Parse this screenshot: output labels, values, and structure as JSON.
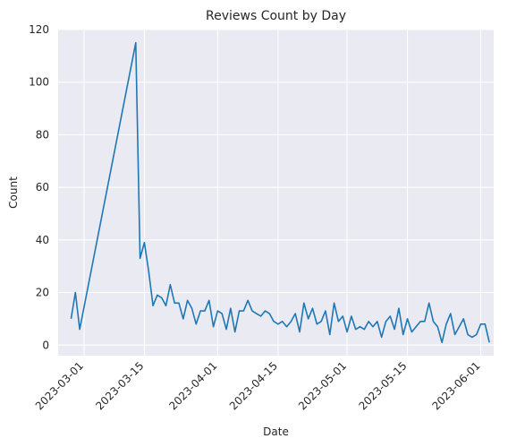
{
  "chart_data": {
    "type": "line",
    "title": "Reviews Count by Day",
    "xlabel": "Date",
    "ylabel": "Count",
    "x_axis_kind": "date",
    "xlim": [
      "2023-02-23",
      "2023-06-04"
    ],
    "ylim": [
      -4,
      120
    ],
    "yticks": [
      0,
      20,
      40,
      60,
      80,
      100,
      120
    ],
    "xticks": [
      "2023-03-01",
      "2023-03-15",
      "2023-04-01",
      "2023-04-15",
      "2023-05-01",
      "2023-05-15",
      "2023-06-01"
    ],
    "grid": true,
    "background": "#eaeaf2",
    "line_color": "#1f77b4",
    "series": [
      {
        "points": [
          [
            "2023-02-26",
            10
          ],
          [
            "2023-02-27",
            20
          ],
          [
            "2023-02-28",
            6
          ],
          [
            "2023-03-13",
            115
          ],
          [
            "2023-03-14",
            33
          ],
          [
            "2023-03-15",
            39
          ],
          [
            "2023-03-16",
            28
          ],
          [
            "2023-03-17",
            15
          ],
          [
            "2023-03-18",
            19
          ],
          [
            "2023-03-19",
            18
          ],
          [
            "2023-03-20",
            15
          ],
          [
            "2023-03-21",
            23
          ],
          [
            "2023-03-22",
            16
          ],
          [
            "2023-03-23",
            16
          ],
          [
            "2023-03-24",
            10
          ],
          [
            "2023-03-25",
            17
          ],
          [
            "2023-03-26",
            14
          ],
          [
            "2023-03-27",
            8
          ],
          [
            "2023-03-28",
            13
          ],
          [
            "2023-03-29",
            13
          ],
          [
            "2023-03-30",
            17
          ],
          [
            "2023-03-31",
            7
          ],
          [
            "2023-04-01",
            13
          ],
          [
            "2023-04-02",
            12
          ],
          [
            "2023-04-03",
            6
          ],
          [
            "2023-04-04",
            14
          ],
          [
            "2023-04-05",
            5
          ],
          [
            "2023-04-06",
            13
          ],
          [
            "2023-04-07",
            13
          ],
          [
            "2023-04-08",
            17
          ],
          [
            "2023-04-09",
            13
          ],
          [
            "2023-04-10",
            12
          ],
          [
            "2023-04-11",
            11
          ],
          [
            "2023-04-12",
            13
          ],
          [
            "2023-04-13",
            12
          ],
          [
            "2023-04-14",
            9
          ],
          [
            "2023-04-15",
            8
          ],
          [
            "2023-04-16",
            9
          ],
          [
            "2023-04-17",
            7
          ],
          [
            "2023-04-18",
            9
          ],
          [
            "2023-04-19",
            12
          ],
          [
            "2023-04-20",
            5
          ],
          [
            "2023-04-21",
            16
          ],
          [
            "2023-04-22",
            10
          ],
          [
            "2023-04-23",
            14
          ],
          [
            "2023-04-24",
            8
          ],
          [
            "2023-04-25",
            9
          ],
          [
            "2023-04-26",
            13
          ],
          [
            "2023-04-27",
            4
          ],
          [
            "2023-04-28",
            16
          ],
          [
            "2023-04-29",
            9
          ],
          [
            "2023-04-30",
            11
          ],
          [
            "2023-05-01",
            5
          ],
          [
            "2023-05-02",
            11
          ],
          [
            "2023-05-03",
            6
          ],
          [
            "2023-05-04",
            7
          ],
          [
            "2023-05-05",
            6
          ],
          [
            "2023-05-06",
            9
          ],
          [
            "2023-05-07",
            7
          ],
          [
            "2023-05-08",
            9
          ],
          [
            "2023-05-09",
            3
          ],
          [
            "2023-05-10",
            9
          ],
          [
            "2023-05-11",
            11
          ],
          [
            "2023-05-12",
            6
          ],
          [
            "2023-05-13",
            14
          ],
          [
            "2023-05-14",
            4
          ],
          [
            "2023-05-15",
            10
          ],
          [
            "2023-05-16",
            5
          ],
          [
            "2023-05-17",
            7
          ],
          [
            "2023-05-18",
            9
          ],
          [
            "2023-05-19",
            9
          ],
          [
            "2023-05-20",
            16
          ],
          [
            "2023-05-21",
            9
          ],
          [
            "2023-05-22",
            7
          ],
          [
            "2023-05-23",
            1
          ],
          [
            "2023-05-24",
            8
          ],
          [
            "2023-05-25",
            12
          ],
          [
            "2023-05-26",
            4
          ],
          [
            "2023-05-27",
            7
          ],
          [
            "2023-05-28",
            10
          ],
          [
            "2023-05-29",
            4
          ],
          [
            "2023-05-30",
            3
          ],
          [
            "2023-05-31",
            4
          ],
          [
            "2023-06-01",
            8
          ],
          [
            "2023-06-02",
            8
          ],
          [
            "2023-06-03",
            1
          ]
        ]
      }
    ]
  }
}
